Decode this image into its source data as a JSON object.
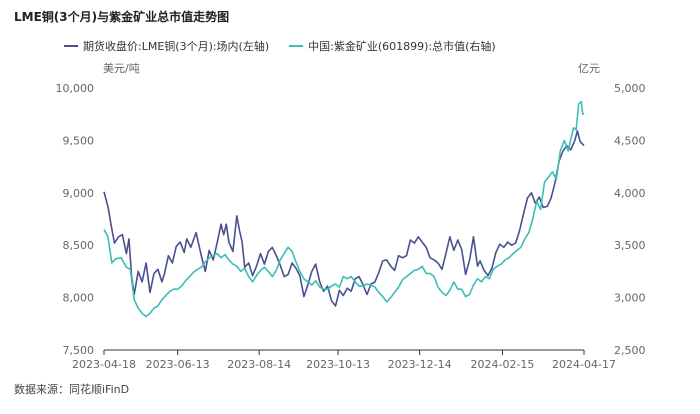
{
  "title": "LME铜(3个月)与紫金矿业总市值走势图",
  "source": "数据来源：同花顺iFinD",
  "chart_data": {
    "type": "line",
    "title": "LME铜(3个月)与紫金矿业总市值走势图",
    "left_axis": {
      "unit": "美元/吨",
      "range": [
        7500,
        10000
      ],
      "ticks": [
        "7,500",
        "8,000",
        "8,500",
        "9,000",
        "9,500",
        "10,000"
      ],
      "tick_values": [
        7500,
        8000,
        8500,
        9000,
        9500,
        10000
      ]
    },
    "right_axis": {
      "unit": "亿元",
      "range": [
        2500,
        5000
      ],
      "ticks": [
        "2,500",
        "3,000",
        "3,500",
        "4,000",
        "4,500",
        "5,000"
      ],
      "tick_values": [
        2500,
        3000,
        3500,
        4000,
        4500,
        5000
      ]
    },
    "x_range": [
      0,
      365
    ],
    "x_ticks": [
      {
        "day": 0,
        "label": "2023-04-18"
      },
      {
        "day": 56,
        "label": "2023-06-13"
      },
      {
        "day": 118,
        "label": "2023-08-14"
      },
      {
        "day": 178,
        "label": "2023-10-13"
      },
      {
        "day": 240,
        "label": "2023-12-14"
      },
      {
        "day": 303,
        "label": "2024-02-15"
      },
      {
        "day": 365,
        "label": "2024-04-17"
      }
    ],
    "series": [
      {
        "name": "期货收盘价:LME铜(3个月):场内(左轴)",
        "axis": "left",
        "color": "#4a4f8f",
        "points": [
          [
            0,
            9010
          ],
          [
            3,
            8870
          ],
          [
            6,
            8650
          ],
          [
            8,
            8520
          ],
          [
            11,
            8580
          ],
          [
            14,
            8600
          ],
          [
            17,
            8420
          ],
          [
            19,
            8560
          ],
          [
            21,
            8200
          ],
          [
            23,
            8030
          ],
          [
            26,
            8250
          ],
          [
            29,
            8150
          ],
          [
            32,
            8330
          ],
          [
            35,
            8050
          ],
          [
            38,
            8230
          ],
          [
            41,
            8270
          ],
          [
            44,
            8150
          ],
          [
            46,
            8230
          ],
          [
            49,
            8400
          ],
          [
            52,
            8330
          ],
          [
            55,
            8490
          ],
          [
            58,
            8530
          ],
          [
            61,
            8430
          ],
          [
            63,
            8560
          ],
          [
            66,
            8480
          ],
          [
            70,
            8620
          ],
          [
            74,
            8400
          ],
          [
            77,
            8250
          ],
          [
            80,
            8450
          ],
          [
            83,
            8360
          ],
          [
            86,
            8520
          ],
          [
            89,
            8700
          ],
          [
            91,
            8600
          ],
          [
            93,
            8700
          ],
          [
            95,
            8530
          ],
          [
            98,
            8440
          ],
          [
            101,
            8780
          ],
          [
            103,
            8640
          ],
          [
            105,
            8530
          ],
          [
            107,
            8290
          ],
          [
            110,
            8330
          ],
          [
            113,
            8210
          ],
          [
            116,
            8300
          ],
          [
            119,
            8420
          ],
          [
            122,
            8320
          ],
          [
            125,
            8440
          ],
          [
            128,
            8480
          ],
          [
            131,
            8400
          ],
          [
            134,
            8310
          ],
          [
            137,
            8200
          ],
          [
            140,
            8220
          ],
          [
            143,
            8330
          ],
          [
            146,
            8280
          ],
          [
            149,
            8210
          ],
          [
            152,
            8010
          ],
          [
            155,
            8120
          ],
          [
            158,
            8250
          ],
          [
            161,
            8320
          ],
          [
            164,
            8150
          ],
          [
            167,
            8060
          ],
          [
            170,
            8110
          ],
          [
            173,
            7970
          ],
          [
            176,
            7920
          ],
          [
            179,
            8070
          ],
          [
            182,
            8020
          ],
          [
            185,
            8090
          ],
          [
            188,
            8060
          ],
          [
            191,
            8180
          ],
          [
            194,
            8200
          ],
          [
            197,
            8120
          ],
          [
            200,
            8030
          ],
          [
            203,
            8130
          ],
          [
            206,
            8150
          ],
          [
            209,
            8240
          ],
          [
            212,
            8350
          ],
          [
            215,
            8360
          ],
          [
            218,
            8300
          ],
          [
            221,
            8260
          ],
          [
            224,
            8400
          ],
          [
            227,
            8380
          ],
          [
            230,
            8400
          ],
          [
            233,
            8550
          ],
          [
            236,
            8520
          ],
          [
            239,
            8580
          ],
          [
            242,
            8530
          ],
          [
            245,
            8480
          ],
          [
            248,
            8380
          ],
          [
            251,
            8360
          ],
          [
            254,
            8330
          ],
          [
            257,
            8270
          ],
          [
            260,
            8420
          ],
          [
            263,
            8580
          ],
          [
            266,
            8450
          ],
          [
            269,
            8550
          ],
          [
            272,
            8460
          ],
          [
            275,
            8220
          ],
          [
            278,
            8360
          ],
          [
            281,
            8580
          ],
          [
            284,
            8300
          ],
          [
            286,
            8350
          ],
          [
            289,
            8260
          ],
          [
            292,
            8210
          ],
          [
            295,
            8280
          ],
          [
            298,
            8430
          ],
          [
            301,
            8510
          ],
          [
            304,
            8480
          ],
          [
            307,
            8530
          ],
          [
            310,
            8500
          ],
          [
            313,
            8520
          ],
          [
            316,
            8640
          ],
          [
            319,
            8800
          ],
          [
            322,
            8950
          ],
          [
            325,
            9000
          ],
          [
            328,
            8900
          ],
          [
            331,
            8960
          ],
          [
            334,
            8860
          ],
          [
            337,
            8870
          ],
          [
            340,
            8950
          ],
          [
            343,
            9100
          ],
          [
            346,
            9300
          ],
          [
            349,
            9400
          ],
          [
            352,
            9450
          ],
          [
            355,
            9410
          ],
          [
            358,
            9500
          ],
          [
            360,
            9590
          ],
          [
            362,
            9490
          ],
          [
            365,
            9450
          ]
        ]
      },
      {
        "name": "中国:紫金矿业(601899):总市值(右轴)",
        "axis": "right",
        "color": "#3bbfb2",
        "points": [
          [
            0,
            3650
          ],
          [
            3,
            3580
          ],
          [
            6,
            3330
          ],
          [
            9,
            3370
          ],
          [
            13,
            3380
          ],
          [
            17,
            3290
          ],
          [
            20,
            3270
          ],
          [
            23,
            2980
          ],
          [
            26,
            2900
          ],
          [
            29,
            2850
          ],
          [
            32,
            2820
          ],
          [
            35,
            2850
          ],
          [
            38,
            2900
          ],
          [
            41,
            2920
          ],
          [
            44,
            2980
          ],
          [
            47,
            3020
          ],
          [
            50,
            3060
          ],
          [
            53,
            3080
          ],
          [
            56,
            3080
          ],
          [
            59,
            3110
          ],
          [
            62,
            3160
          ],
          [
            65,
            3200
          ],
          [
            68,
            3240
          ],
          [
            71,
            3270
          ],
          [
            74,
            3290
          ],
          [
            77,
            3340
          ],
          [
            80,
            3380
          ],
          [
            83,
            3400
          ],
          [
            86,
            3420
          ],
          [
            89,
            3380
          ],
          [
            92,
            3410
          ],
          [
            95,
            3360
          ],
          [
            98,
            3320
          ],
          [
            101,
            3300
          ],
          [
            104,
            3250
          ],
          [
            107,
            3280
          ],
          [
            110,
            3200
          ],
          [
            113,
            3150
          ],
          [
            116,
            3210
          ],
          [
            119,
            3260
          ],
          [
            122,
            3290
          ],
          [
            125,
            3250
          ],
          [
            128,
            3200
          ],
          [
            131,
            3260
          ],
          [
            134,
            3360
          ],
          [
            137,
            3420
          ],
          [
            140,
            3480
          ],
          [
            143,
            3440
          ],
          [
            146,
            3340
          ],
          [
            149,
            3250
          ],
          [
            152,
            3180
          ],
          [
            155,
            3150
          ],
          [
            158,
            3120
          ],
          [
            161,
            3160
          ],
          [
            164,
            3100
          ],
          [
            167,
            3080
          ],
          [
            170,
            3080
          ],
          [
            173,
            3110
          ],
          [
            176,
            3130
          ],
          [
            179,
            3100
          ],
          [
            182,
            3200
          ],
          [
            185,
            3180
          ],
          [
            188,
            3200
          ],
          [
            191,
            3150
          ],
          [
            194,
            3110
          ],
          [
            197,
            3110
          ],
          [
            200,
            3130
          ],
          [
            203,
            3120
          ],
          [
            206,
            3100
          ],
          [
            209,
            3050
          ],
          [
            212,
            3010
          ],
          [
            215,
            2960
          ],
          [
            218,
            3000
          ],
          [
            221,
            3050
          ],
          [
            224,
            3100
          ],
          [
            227,
            3170
          ],
          [
            230,
            3200
          ],
          [
            233,
            3230
          ],
          [
            236,
            3260
          ],
          [
            239,
            3270
          ],
          [
            242,
            3300
          ],
          [
            245,
            3230
          ],
          [
            248,
            3230
          ],
          [
            251,
            3200
          ],
          [
            254,
            3100
          ],
          [
            257,
            3050
          ],
          [
            260,
            3020
          ],
          [
            263,
            3070
          ],
          [
            266,
            3150
          ],
          [
            269,
            3080
          ],
          [
            272,
            3080
          ],
          [
            275,
            3010
          ],
          [
            278,
            3030
          ],
          [
            281,
            3120
          ],
          [
            284,
            3180
          ],
          [
            287,
            3150
          ],
          [
            290,
            3200
          ],
          [
            293,
            3180
          ],
          [
            296,
            3270
          ],
          [
            299,
            3300
          ],
          [
            302,
            3320
          ],
          [
            305,
            3360
          ],
          [
            308,
            3380
          ],
          [
            311,
            3420
          ],
          [
            314,
            3450
          ],
          [
            317,
            3480
          ],
          [
            320,
            3560
          ],
          [
            323,
            3620
          ],
          [
            326,
            3750
          ],
          [
            329,
            3920
          ],
          [
            332,
            3840
          ],
          [
            335,
            4100
          ],
          [
            338,
            4150
          ],
          [
            341,
            4200
          ],
          [
            344,
            4130
          ],
          [
            347,
            4400
          ],
          [
            350,
            4500
          ],
          [
            353,
            4400
          ],
          [
            355,
            4510
          ],
          [
            357,
            4620
          ],
          [
            359,
            4600
          ],
          [
            361,
            4850
          ],
          [
            363,
            4870
          ],
          [
            364,
            4750
          ],
          [
            365,
            4760
          ]
        ]
      }
    ]
  }
}
